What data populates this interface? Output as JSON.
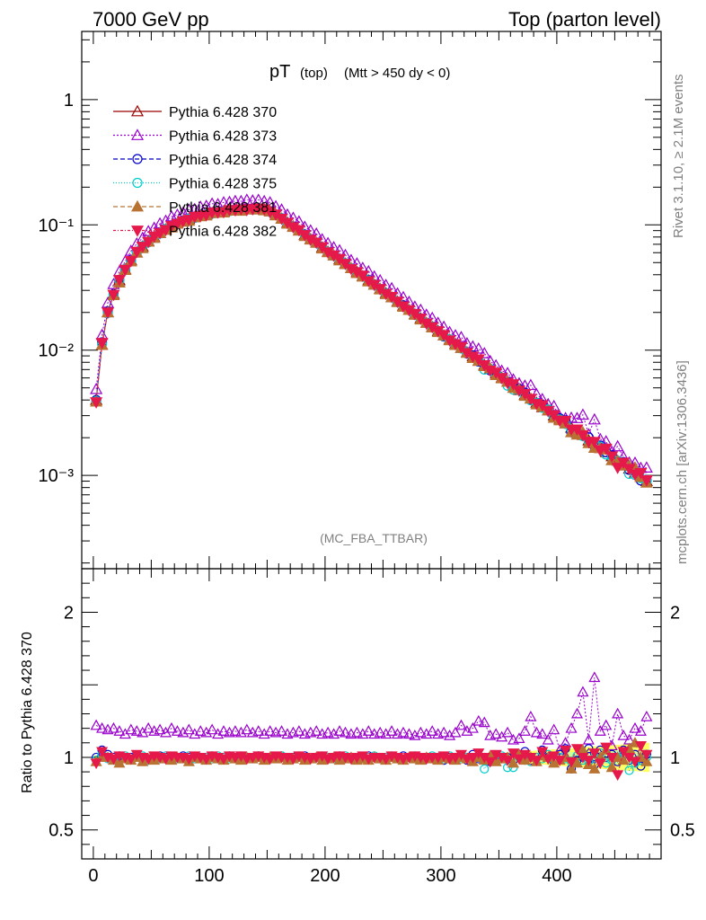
{
  "header": {
    "left": "7000 GeV pp",
    "right": "Top (parton level)"
  },
  "side_labels": {
    "rivet": "Rivet 3.1.10, ≥ 2.1M events",
    "mcplots": "mcplots.cern.ch [arXiv:1306.3436]"
  },
  "plot": {
    "title_main": "pT",
    "title_sub1": "(top)",
    "title_sub2": "(Mtt > 450 dy < 0)",
    "watermark": "(MC_FBA_TTBAR)",
    "ratio_ylabel": "Ratio to Pythia 6.428 370"
  },
  "chart_data": {
    "type": "line",
    "x": [
      2.5,
      7.5,
      12.5,
      17.5,
      22.5,
      27.5,
      32.5,
      37.5,
      42.5,
      47.5,
      52.5,
      57.5,
      62.5,
      67.5,
      72.5,
      77.5,
      82.5,
      87.5,
      92.5,
      97.5,
      102.5,
      107.5,
      112.5,
      117.5,
      122.5,
      127.5,
      132.5,
      137.5,
      142.5,
      147.5,
      152.5,
      157.5,
      162.5,
      167.5,
      172.5,
      177.5,
      182.5,
      187.5,
      192.5,
      197.5,
      202.5,
      207.5,
      212.5,
      217.5,
      222.5,
      227.5,
      232.5,
      237.5,
      242.5,
      247.5,
      252.5,
      257.5,
      262.5,
      267.5,
      272.5,
      277.5,
      282.5,
      287.5,
      292.5,
      297.5,
      302.5,
      307.5,
      312.5,
      317.5,
      322.5,
      327.5,
      332.5,
      337.5,
      342.5,
      347.5,
      352.5,
      357.5,
      362.5,
      367.5,
      372.5,
      377.5,
      382.5,
      387.5,
      392.5,
      397.5,
      402.5,
      407.5,
      412.5,
      417.5,
      422.5,
      427.5,
      432.5,
      437.5,
      442.5,
      447.5,
      452.5,
      457.5,
      462.5,
      467.5,
      472.5,
      477.5
    ],
    "series": [
      {
        "name": "Pythia 6.428 370",
        "color": "#990000",
        "marker": "triangle-open",
        "dash": "solid",
        "values": [
          0.004,
          0.011,
          0.02,
          0.028,
          0.036,
          0.044,
          0.052,
          0.06,
          0.067,
          0.074,
          0.08,
          0.086,
          0.092,
          0.097,
          0.102,
          0.107,
          0.111,
          0.115,
          0.118,
          0.121,
          0.124,
          0.126,
          0.128,
          0.13,
          0.131,
          0.132,
          0.133,
          0.1335,
          0.134,
          0.133,
          0.128,
          0.12,
          0.112,
          0.104,
          0.097,
          0.09,
          0.083,
          0.077,
          0.072,
          0.066,
          0.061,
          0.057,
          0.053,
          0.049,
          0.045,
          0.042,
          0.039,
          0.036,
          0.0333,
          0.0308,
          0.0285,
          0.0264,
          0.0244,
          0.0226,
          0.0209,
          0.0193,
          0.0179,
          0.0165,
          0.0153,
          0.0142,
          0.0131,
          0.0121,
          0.0112,
          0.0104,
          0.0096,
          0.0089,
          0.0082,
          0.0076,
          0.0071,
          0.0065,
          0.006,
          0.0056,
          0.0052,
          0.0048,
          0.0044,
          0.0041,
          0.0038,
          0.0035,
          0.0033,
          0.003,
          0.0028,
          0.0026,
          0.0024,
          0.0022,
          0.0021,
          0.0019,
          0.0018,
          0.00165,
          0.00153,
          0.00142,
          0.00131,
          0.00122,
          0.00113,
          0.00105,
          0.00097,
          0.0009
        ],
        "ratio": [
          1.0,
          1.0,
          1.0,
          1.0,
          1.0,
          1.0,
          1.0,
          1.0,
          1.0,
          1.0,
          1.0,
          1.0,
          1.0,
          1.0,
          1.0,
          1.0,
          1.0,
          1.0,
          1.0,
          1.0,
          1.0,
          1.0,
          1.0,
          1.0,
          1.0,
          1.0,
          1.0,
          1.0,
          1.0,
          1.0,
          1.0,
          1.0,
          1.0,
          1.0,
          1.0,
          1.0,
          1.0,
          1.0,
          1.0,
          1.0,
          1.0,
          1.0,
          1.0,
          1.0,
          1.0,
          1.0,
          1.0,
          1.0,
          1.0,
          1.0,
          1.0,
          1.0,
          1.0,
          1.0,
          1.0,
          1.0,
          1.0,
          1.0,
          1.0,
          1.0,
          1.0,
          1.0,
          1.0,
          1.0,
          1.0,
          1.0,
          1.0,
          1.0,
          1.0,
          1.0,
          1.0,
          1.0,
          1.0,
          1.0,
          1.0,
          1.0,
          1.0,
          1.0,
          1.0,
          1.0,
          1.0,
          1.0,
          1.0,
          1.0,
          1.0,
          1.0,
          1.0,
          1.0,
          1.0,
          1.0,
          1.0,
          1.0,
          1.0,
          1.0,
          1.0,
          1.0
        ]
      },
      {
        "name": "Pythia 6.428 373",
        "color": "#9900cc",
        "marker": "triangle-open",
        "dash": "2,2",
        "ratio": [
          1.22,
          1.2,
          1.19,
          1.2,
          1.18,
          1.16,
          1.19,
          1.18,
          1.17,
          1.2,
          1.18,
          1.19,
          1.17,
          1.2,
          1.18,
          1.17,
          1.19,
          1.16,
          1.18,
          1.17,
          1.19,
          1.16,
          1.18,
          1.17,
          1.18,
          1.17,
          1.19,
          1.17,
          1.18,
          1.16,
          1.18,
          1.17,
          1.18,
          1.16,
          1.17,
          1.18,
          1.16,
          1.17,
          1.18,
          1.16,
          1.17,
          1.16,
          1.18,
          1.17,
          1.16,
          1.17,
          1.16,
          1.18,
          1.16,
          1.17,
          1.16,
          1.18,
          1.16,
          1.17,
          1.16,
          1.15,
          1.17,
          1.16,
          1.18,
          1.16,
          1.17,
          1.15,
          1.17,
          1.22,
          1.18,
          1.2,
          1.25,
          1.24,
          1.15,
          1.16,
          1.14,
          1.17,
          1.12,
          1.13,
          1.18,
          1.28,
          1.17,
          1.16,
          1.12,
          1.19,
          1.05,
          1.1,
          1.2,
          1.3,
          1.45,
          1.12,
          1.55,
          1.18,
          1.22,
          1.08,
          1.3,
          1.15,
          1.12,
          1.2,
          1.18,
          1.28
        ]
      },
      {
        "name": "Pythia 6.428 374",
        "color": "#0000cc",
        "marker": "circle-open",
        "dash": "5,3",
        "ratio": [
          1.0,
          1.05,
          1.02,
          1.0,
          1.01,
          0.99,
          1.0,
          1.01,
          1.0,
          0.99,
          1.0,
          1.01,
          1.0,
          0.99,
          1.0,
          1.01,
          1.0,
          0.99,
          1.0,
          1.0,
          1.01,
          0.99,
          1.0,
          1.01,
          1.0,
          0.99,
          1.0,
          1.0,
          1.01,
          0.99,
          1.0,
          1.0,
          1.01,
          0.99,
          1.0,
          1.0,
          1.01,
          0.99,
          1.0,
          1.0,
          0.99,
          1.0,
          1.01,
          0.99,
          1.0,
          1.0,
          0.99,
          1.01,
          1.0,
          0.99,
          1.0,
          1.0,
          0.99,
          1.01,
          1.0,
          0.99,
          1.0,
          1.0,
          0.99,
          1.0,
          0.98,
          1.0,
          0.99,
          1.0,
          0.98,
          1.02,
          0.99,
          1.0,
          0.97,
          1.01,
          0.99,
          1.0,
          0.98,
          1.02,
          1.04,
          0.98,
          1.0,
          1.05,
          1.0,
          0.97,
          1.02,
          1.06,
          0.92,
          0.98,
          1.0,
          1.06,
          0.95,
          1.05,
          1.0,
          1.02,
          0.97,
          1.05,
          0.98,
          1.02,
          0.94,
          1.02
        ]
      },
      {
        "name": "Pythia 6.428 375",
        "color": "#00cccc",
        "marker": "circle-open",
        "dash": "1,2",
        "ratio": [
          0.98,
          1.02,
          0.99,
          0.98,
          1.0,
          1.01,
          0.99,
          1.0,
          1.01,
          0.98,
          1.0,
          0.99,
          1.01,
          1.0,
          0.99,
          1.0,
          1.01,
          0.99,
          1.0,
          1.0,
          0.99,
          1.01,
          1.0,
          0.99,
          1.0,
          1.01,
          1.0,
          0.99,
          1.01,
          1.0,
          0.99,
          1.0,
          1.01,
          1.0,
          0.99,
          1.01,
          1.0,
          0.99,
          1.0,
          1.01,
          1.0,
          0.99,
          1.0,
          1.01,
          1.0,
          0.99,
          1.0,
          1.0,
          1.01,
          0.99,
          1.0,
          1.01,
          1.0,
          0.99,
          1.0,
          1.01,
          0.99,
          1.0,
          1.01,
          1.0,
          0.99,
          1.01,
          1.0,
          0.99,
          1.0,
          1.0,
          1.01,
          0.92,
          1.0,
          0.98,
          1.01,
          0.93,
          0.93,
          1.0,
          0.98,
          0.97,
          1.0,
          0.99,
          1.02,
          0.98,
          1.0,
          0.99,
          0.97,
          1.01,
          0.98,
          0.97,
          1.0,
          1.03,
          0.96,
          0.98,
          1.0,
          1.02,
          0.91,
          0.96,
          0.98,
          1.0
        ]
      },
      {
        "name": "Pythia 6.428 381",
        "color": "#b87333",
        "marker": "triangle-filled",
        "dash": "5,3",
        "ratio": [
          0.97,
          1.0,
          1.0,
          0.98,
          0.96,
          0.99,
          0.98,
          1.0,
          0.97,
          0.99,
          0.98,
          1.0,
          0.99,
          0.98,
          1.0,
          0.99,
          0.97,
          1.0,
          0.99,
          0.98,
          1.0,
          0.99,
          0.98,
          1.0,
          0.99,
          0.98,
          1.0,
          0.99,
          1.0,
          0.98,
          1.0,
          0.99,
          1.0,
          0.98,
          0.99,
          1.0,
          0.98,
          0.99,
          1.0,
          0.98,
          0.99,
          1.0,
          0.98,
          0.99,
          1.0,
          0.98,
          0.99,
          0.98,
          1.0,
          0.99,
          0.98,
          1.0,
          0.99,
          0.98,
          1.0,
          0.99,
          0.98,
          1.0,
          0.99,
          0.98,
          1.0,
          0.99,
          0.98,
          1.0,
          0.99,
          0.97,
          1.0,
          0.98,
          1.01,
          0.97,
          0.99,
          1.0,
          0.96,
          1.02,
          0.98,
          1.0,
          0.97,
          1.01,
          1.0,
          0.96,
          0.98,
          1.0,
          0.92,
          0.96,
          1.05,
          0.95,
          0.92,
          1.0,
          1.05,
          0.93,
          1.0,
          0.98,
          1.06,
          1.1,
          1.0,
          0.97
        ]
      },
      {
        "name": "Pythia 6.428 382",
        "color": "#e6194b",
        "marker": "triangle-down-filled",
        "dash": "3,2,1,2",
        "ratio": [
          0.96,
          1.04,
          1.0,
          0.99,
          1.01,
          1.0,
          0.99,
          1.02,
          1.0,
          0.99,
          1.01,
          1.0,
          0.99,
          1.01,
          1.0,
          1.0,
          0.99,
          1.01,
          1.0,
          0.99,
          1.01,
          1.0,
          0.99,
          1.01,
          1.0,
          1.01,
          0.99,
          1.0,
          1.01,
          1.0,
          0.99,
          1.01,
          1.0,
          1.0,
          0.99,
          1.01,
          1.0,
          0.99,
          1.0,
          1.01,
          0.99,
          1.0,
          1.01,
          1.0,
          0.99,
          1.0,
          1.01,
          0.99,
          1.0,
          1.0,
          0.99,
          1.01,
          1.0,
          0.99,
          1.0,
          1.01,
          1.0,
          0.99,
          1.0,
          1.0,
          1.01,
          0.99,
          1.0,
          1.02,
          0.99,
          1.0,
          1.03,
          1.0,
          0.97,
          1.02,
          1.0,
          0.98,
          1.03,
          0.99,
          1.02,
          1.0,
          0.98,
          1.04,
          0.99,
          1.01,
          0.98,
          1.05,
          0.97,
          1.06,
          1.0,
          0.98,
          1.03,
          0.96,
          1.07,
          1.0,
          0.88,
          1.04,
          1.0,
          0.97,
          1.08,
          1.02
        ]
      }
    ],
    "xlim": [
      -10,
      490
    ],
    "ylim_main": [
      0.00018,
      3.5
    ],
    "ylog_main": true,
    "ylim_ratio": [
      0.3,
      2.3
    ],
    "x_ticks": [
      0,
      100,
      200,
      300,
      400
    ],
    "y_ticks_main": [
      {
        "v": 1,
        "l": "1"
      },
      {
        "v": 0.1,
        "l": "10⁻¹"
      },
      {
        "v": 0.01,
        "l": "10⁻²"
      },
      {
        "v": 0.001,
        "l": "10⁻³"
      }
    ],
    "y_ticks_ratio": [
      {
        "v": 2,
        "l": "2"
      },
      {
        "v": 1,
        "l": "1"
      },
      {
        "v": 0.5,
        "l": "0.5"
      }
    ],
    "legend_position": "top-left",
    "band_color": "#ffff66",
    "band_color2": "#ccff99"
  }
}
